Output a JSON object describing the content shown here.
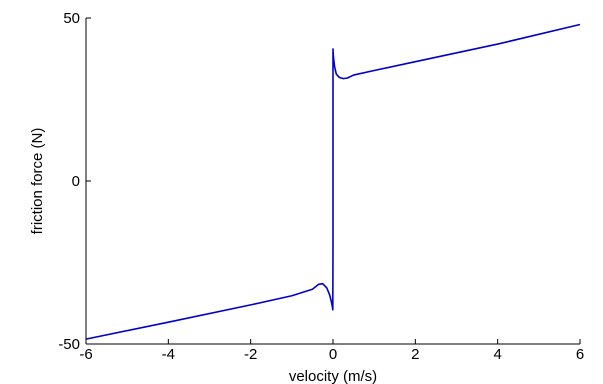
{
  "chart_data": {
    "type": "line",
    "title": "",
    "xlabel": "velocity (m/s)",
    "ylabel": "friction force (N)",
    "xlim": [
      -6,
      6
    ],
    "ylim": [
      -50,
      50
    ],
    "x_ticks": [
      -6,
      -4,
      -2,
      0,
      2,
      4,
      6
    ],
    "x_tick_labels": [
      "-6",
      "-4",
      "-2",
      "0",
      "2",
      "4",
      "6"
    ],
    "y_ticks": [
      -50,
      0,
      50
    ],
    "y_tick_labels": [
      "-50",
      "0",
      "50"
    ],
    "grid": false,
    "legend": "none",
    "series": [
      {
        "color": "#0000cc",
        "x": [
          -6,
          -4,
          -2,
          -1,
          -0.5,
          -0.35,
          -0.25,
          -0.15,
          -0.08,
          -0.04,
          -0.02,
          -0.01,
          -0.005,
          0,
          0,
          0.003,
          0.01,
          0.02,
          0.04,
          0.08,
          0.15,
          0.25,
          0.35,
          0.5,
          1,
          2,
          4,
          6
        ],
        "y": [
          -48.5,
          -43.3,
          -38.0,
          -35.2,
          -33.2,
          -31.7,
          -31.5,
          -32.8,
          -35.0,
          -37.0,
          -38.3,
          -39.0,
          -39.5,
          -20.0,
          40.5,
          39.5,
          38.3,
          37.0,
          35.0,
          32.8,
          31.8,
          31.4,
          31.6,
          32.5,
          33.9,
          36.6,
          42.0,
          48.0
        ]
      }
    ]
  }
}
